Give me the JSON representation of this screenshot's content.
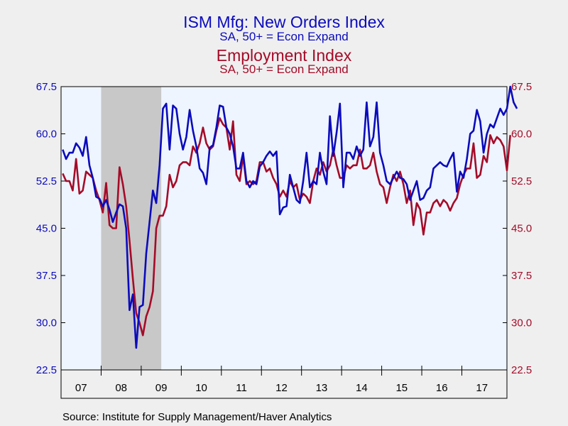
{
  "titles": {
    "series1_title": "ISM Mfg: New Orders Index",
    "series1_subtitle": "SA, 50+ = Econ Expand",
    "series2_title": "Employment Index",
    "series2_subtitle": "SA, 50+ = Econ Expand"
  },
  "source": "Source:  Institute for Supply Management/Haver Analytics",
  "chart_data": {
    "type": "line",
    "x_ticks": [
      "07",
      "08",
      "09",
      "10",
      "11",
      "12",
      "13",
      "14",
      "15",
      "16",
      "17"
    ],
    "x_start": "2007-01",
    "y_ticks": [
      "22.5",
      "30.0",
      "37.5",
      "45.0",
      "52.5",
      "60.0",
      "67.5"
    ],
    "ylim": [
      22.5,
      67.5
    ],
    "recession_shading": {
      "start": "2008-01",
      "end": "2009-06"
    },
    "plot_background": "#eef5ff",
    "series": [
      {
        "name": "ISM Mfg: New Orders Index",
        "color": "#0b0bbd",
        "axis": "left",
        "values": [
          57.5,
          56.0,
          57.0,
          57.0,
          58.5,
          57.8,
          56.5,
          59.5,
          55.0,
          53.0,
          50.0,
          49.7,
          48.5,
          49.5,
          48.0,
          46.0,
          47.5,
          48.8,
          48.5,
          45.0,
          32.0,
          34.5,
          26.0,
          32.5,
          32.8,
          41.0,
          46.0,
          51.0,
          49.0,
          55.0,
          64.0,
          64.8,
          57.5,
          64.5,
          64.0,
          60.0,
          57.5,
          59.5,
          63.8,
          60.5,
          58.0,
          54.5,
          53.8,
          52.0,
          57.8,
          58.2,
          61.0,
          64.5,
          64.3,
          61.0,
          60.0,
          58.0,
          54.5,
          54.5,
          57.0,
          52.5,
          51.5,
          52.5,
          52.0,
          54.8,
          55.5,
          56.5,
          57.2,
          56.5,
          57.2,
          47.2,
          48.3,
          48.5,
          53.5,
          51.5,
          49.5,
          49.0,
          52.5,
          57.0,
          51.5,
          52.5,
          52.0,
          57.0,
          54.0,
          52.0,
          62.8,
          56.5,
          60.2,
          64.8,
          51.5,
          57.0,
          57.0,
          56.0,
          58.0,
          56.5,
          57.5,
          65.0,
          58.0,
          59.5,
          65.0,
          57.0,
          55.0,
          52.5,
          52.0,
          53.0,
          54.0,
          53.0,
          52.8,
          52.0,
          49.5,
          51.0,
          52.5,
          49.5,
          49.8,
          51.0,
          51.5,
          54.5,
          55.0,
          55.5,
          55.0,
          54.8,
          56.0,
          57.0,
          50.8,
          54.0,
          53.0,
          56.0,
          60.0,
          60.5,
          63.8,
          62.0,
          57.0,
          60.0,
          61.5,
          61.0,
          62.5,
          64.0,
          63.0,
          64.0,
          67.5,
          65.0,
          64.0
        ]
      },
      {
        "name": "Employment Index",
        "color": "#a50b28",
        "axis": "right",
        "values": [
          53.7,
          52.5,
          52.5,
          51.0,
          56.0,
          50.5,
          51.0,
          54.0,
          53.5,
          53.0,
          51.0,
          49.5,
          47.5,
          52.2,
          45.5,
          45.0,
          45.0,
          54.7,
          52.0,
          48.5,
          43.0,
          37.0,
          31.5,
          30.0,
          28.0,
          31.0,
          32.5,
          35.0,
          45.0,
          47.0,
          47.0,
          48.5,
          53.5,
          51.5,
          52.5,
          55.0,
          55.5,
          55.5,
          55.0,
          58.0,
          57.0,
          58.5,
          61.0,
          58.5,
          57.5,
          58.0,
          60.5,
          62.5,
          61.5,
          61.0,
          57.5,
          62.0,
          53.5,
          52.5,
          56.5,
          52.0,
          52.5,
          52.0,
          52.5,
          55.5,
          55.5,
          54.0,
          54.5,
          53.0,
          52.0,
          50.0,
          51.0,
          50.0,
          52.5,
          51.5,
          52.0,
          49.5,
          50.5,
          50.0,
          49.0,
          52.5,
          54.5,
          53.5,
          55.5,
          54.0,
          55.0,
          57.5,
          55.0,
          53.0,
          53.0,
          55.0,
          54.5,
          55.0,
          55.0,
          57.5,
          54.5,
          54.5,
          55.0,
          57.0,
          54.0,
          52.0,
          51.5,
          49.0,
          51.5,
          53.5,
          52.5,
          54.0,
          52.0,
          49.0,
          51.0,
          45.5,
          49.0,
          48.0,
          44.0,
          47.5,
          47.5,
          49.0,
          49.5,
          48.5,
          49.5,
          49.0,
          47.8,
          49.0,
          49.8,
          52.0,
          53.5,
          54.5,
          54.5,
          58.5,
          53.0,
          53.5,
          56.5,
          55.5,
          59.8,
          58.5,
          59.5,
          59.0,
          58.0,
          54.2,
          59.8
        ]
      }
    ]
  }
}
